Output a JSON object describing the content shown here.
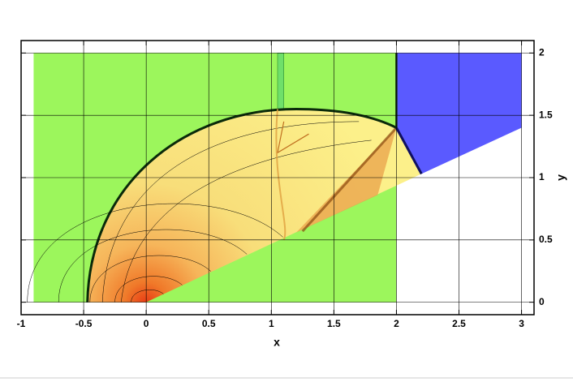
{
  "chart_data": {
    "type": "contour",
    "xlabel": "x",
    "ylabel": "y",
    "xlim": [
      -1,
      3.1
    ],
    "ylim": [
      -0.1,
      2.1
    ],
    "xticks": [
      -1,
      -0.5,
      0,
      0.5,
      1,
      1.5,
      2,
      2.5,
      3
    ],
    "yticks": [
      0,
      0.5,
      1,
      1.5,
      2
    ],
    "grid": true
  }
}
